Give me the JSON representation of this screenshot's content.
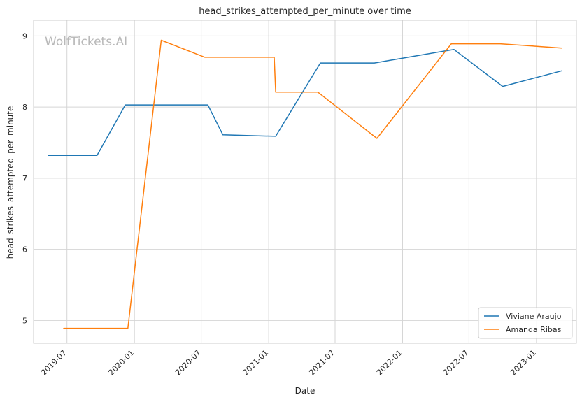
{
  "watermark": "WolfTickets.AI",
  "chart_data": {
    "type": "line",
    "title": "head_strikes_attempted_per_minute over time",
    "xlabel": "Date",
    "ylabel": "head_strikes_attempted_per_minute",
    "xlim": [
      "2019-04-01",
      "2023-04-20"
    ],
    "ylim": [
      4.68,
      9.22
    ],
    "grid": true,
    "legend_position": "bottom-right",
    "x_ticks": [
      "2019-07",
      "2020-01",
      "2020-07",
      "2021-01",
      "2021-07",
      "2022-01",
      "2022-07",
      "2023-01"
    ],
    "y_ticks": [
      5,
      6,
      7,
      8,
      9
    ],
    "series": [
      {
        "name": "Viviane Araujo",
        "color": "#1f77b4",
        "points": [
          {
            "x": "2019-05-11",
            "y": 7.32
          },
          {
            "x": "2019-09-21",
            "y": 7.32
          },
          {
            "x": "2019-12-07",
            "y": 8.03
          },
          {
            "x": "2020-07-19",
            "y": 8.03
          },
          {
            "x": "2020-08-29",
            "y": 7.61
          },
          {
            "x": "2021-01-20",
            "y": 7.59
          },
          {
            "x": "2021-05-22",
            "y": 8.62
          },
          {
            "x": "2021-10-16",
            "y": 8.62
          },
          {
            "x": "2022-05-21",
            "y": 8.81
          },
          {
            "x": "2022-10-01",
            "y": 8.29
          },
          {
            "x": "2023-03-11",
            "y": 8.51
          }
        ]
      },
      {
        "name": "Amanda Ribas",
        "color": "#ff7f0e",
        "points": [
          {
            "x": "2019-06-22",
            "y": 4.89
          },
          {
            "x": "2019-12-14",
            "y": 4.89
          },
          {
            "x": "2020-03-14",
            "y": 8.94
          },
          {
            "x": "2020-07-11",
            "y": 8.7
          },
          {
            "x": "2021-01-16",
            "y": 8.7
          },
          {
            "x": "2021-01-20",
            "y": 8.21
          },
          {
            "x": "2021-05-15",
            "y": 8.21
          },
          {
            "x": "2021-10-23",
            "y": 7.56
          },
          {
            "x": "2022-05-14",
            "y": 8.89
          },
          {
            "x": "2022-09-24",
            "y": 8.89
          },
          {
            "x": "2023-03-11",
            "y": 8.83
          }
        ]
      }
    ]
  }
}
